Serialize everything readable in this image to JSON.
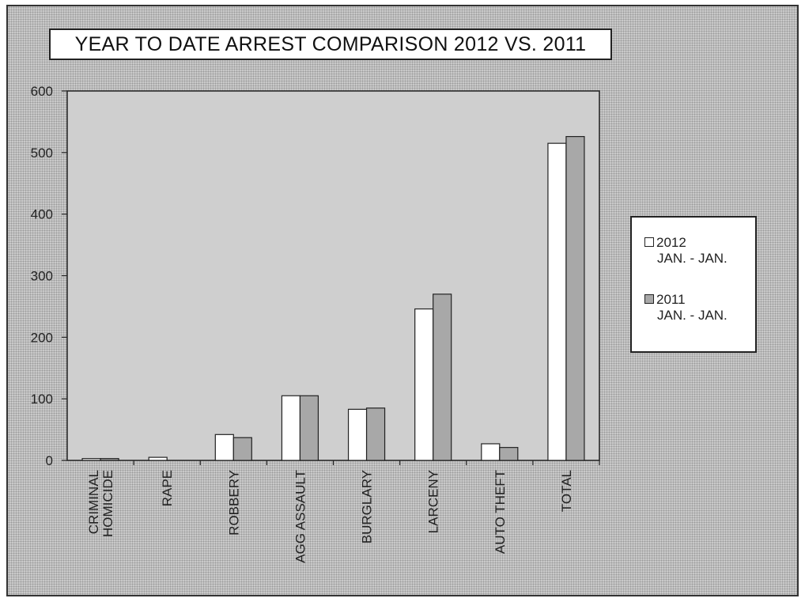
{
  "chart_data": {
    "type": "bar",
    "title": "YEAR TO DATE ARREST COMPARISON 2012 VS. 2011",
    "categories": [
      "CRIMINAL\nHOMICIDE",
      "RAPE",
      "ROBBERY",
      "AGG ASSAULT",
      "BURGLARY",
      "LARCENY",
      "AUTO THEFT",
      "TOTAL"
    ],
    "series": [
      {
        "name": "2012",
        "sublabel": "JAN. - JAN.",
        "values": [
          3,
          5,
          42,
          105,
          83,
          246,
          27,
          515
        ],
        "color": "#ffffff"
      },
      {
        "name": "2011",
        "sublabel": "JAN. - JAN.",
        "values": [
          3,
          0,
          37,
          105,
          85,
          270,
          21,
          526
        ],
        "color": "#a8a8a8"
      }
    ],
    "ylim": [
      0,
      600
    ],
    "yticks": [
      0,
      100,
      200,
      300,
      400,
      500,
      600
    ],
    "xlabel": "",
    "ylabel": "",
    "grid": false,
    "legend": "right"
  }
}
